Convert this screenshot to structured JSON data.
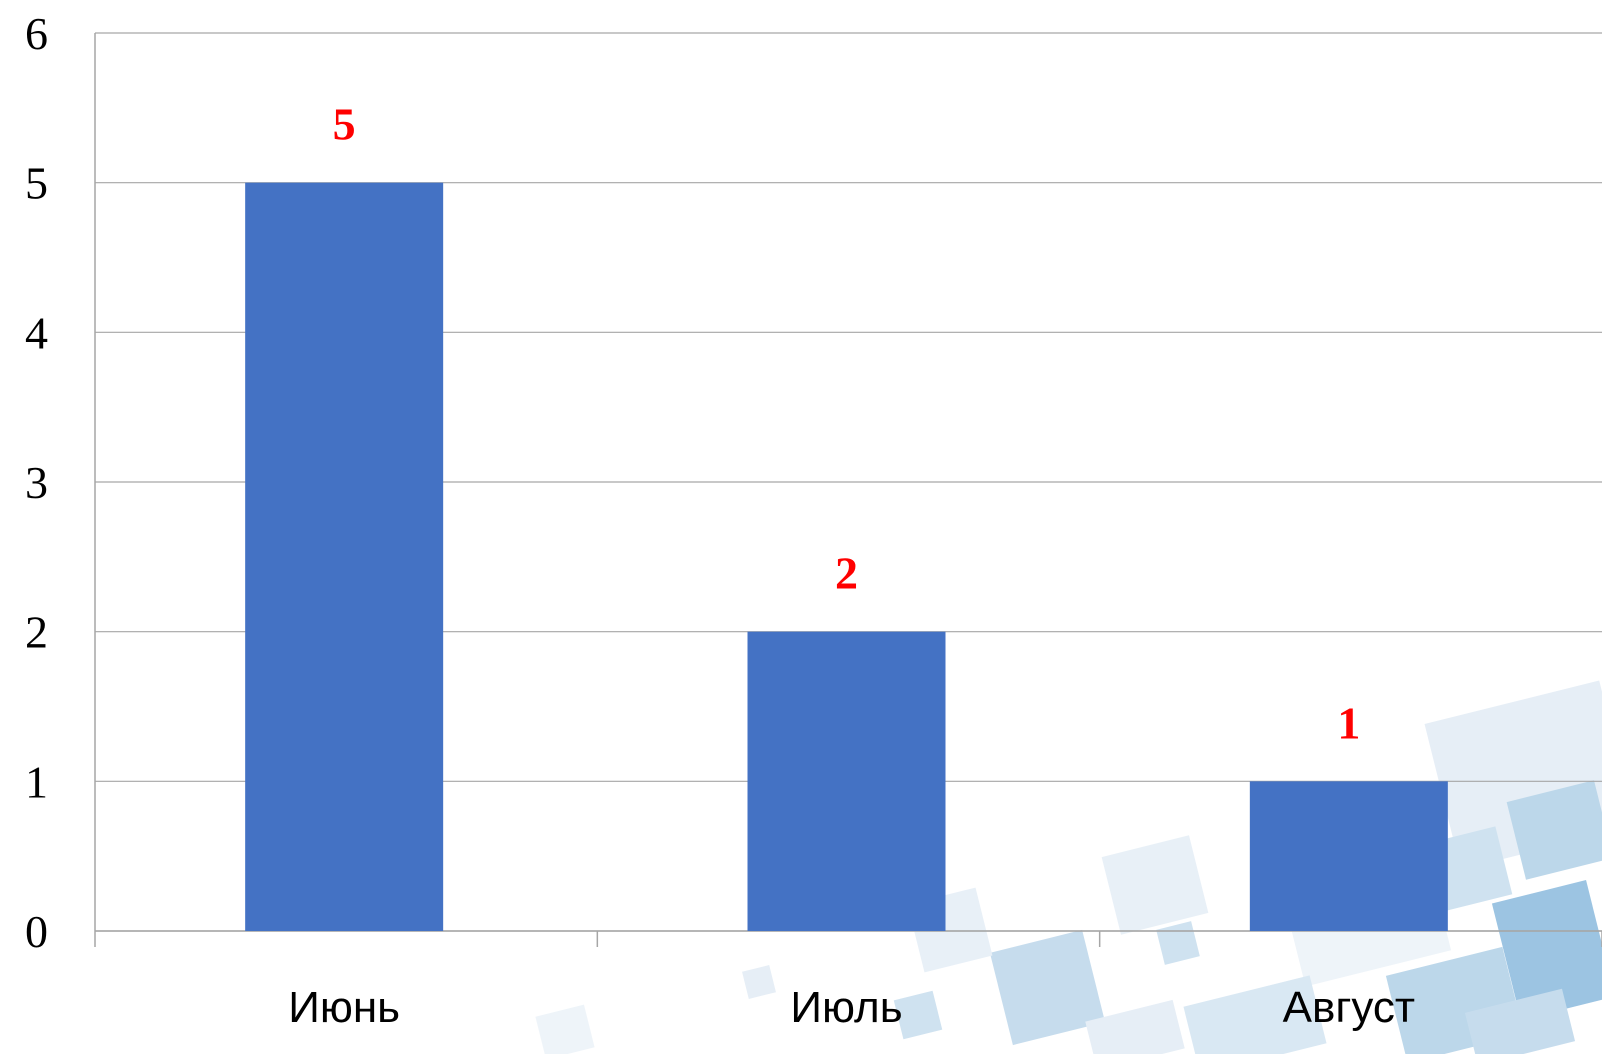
{
  "chart_data": {
    "type": "bar",
    "categories": [
      "Июнь",
      "Июль",
      "Август"
    ],
    "values": [
      5,
      2,
      1
    ],
    "data_labels": [
      "5",
      "2",
      "1"
    ],
    "y_ticks": [
      "0",
      "1",
      "2",
      "3",
      "4",
      "5",
      "6"
    ],
    "ylim": [
      0,
      6
    ],
    "title": "",
    "xlabel": "",
    "ylabel": "",
    "grid": true,
    "legend": "none",
    "colors": {
      "bar": "#4472c4",
      "data_label": "#ff0000",
      "grid": "#a6a6a6",
      "axis": "#a6a6a6"
    }
  }
}
